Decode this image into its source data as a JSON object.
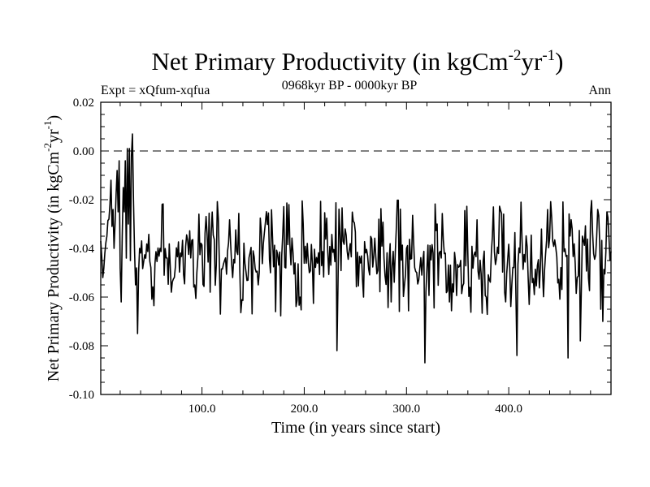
{
  "chart_data": {
    "type": "line",
    "title": "Net Primary Productivity (in kgCm",
    "title_sup1": "-2",
    "title_mid": "yr",
    "title_sup2": "-1",
    "title_end": ")",
    "subtitle_left": "Expt = xQfum-xqfua",
    "subtitle_center": "0968kyr BP - 0000kyr BP",
    "subtitle_right": "Ann",
    "xlabel": "Time (in years since start)",
    "ylabel": "Net Primary Productivity (in kgCm",
    "ylabel_sup1": "-2",
    "ylabel_mid": "yr",
    "ylabel_sup2": "-1",
    "ylabel_end": ")",
    "xlim": [
      1,
      500
    ],
    "ylim": [
      -0.1,
      0.02
    ],
    "xticks": [
      100,
      200,
      300,
      400
    ],
    "xtick_labels": [
      "100.0",
      "200.0",
      "300.0",
      "400.0"
    ],
    "yticks": [
      0.02,
      0.0,
      -0.02,
      -0.04,
      -0.06,
      -0.08,
      -0.1
    ],
    "ytick_labels": [
      "0.02",
      "0.00",
      "-0.02",
      "-0.04",
      "-0.06",
      "-0.08",
      "-0.10"
    ],
    "reference_line": 0.0,
    "anchors": [
      [
        1,
        -0.037
      ],
      [
        3,
        -0.052
      ],
      [
        5,
        -0.042
      ],
      [
        7,
        -0.035
      ],
      [
        9,
        -0.028
      ],
      [
        10,
        -0.022
      ],
      [
        11,
        -0.012
      ],
      [
        12,
        -0.031
      ],
      [
        13,
        -0.024
      ],
      [
        14,
        -0.04
      ],
      [
        15,
        -0.03
      ],
      [
        16,
        -0.018
      ],
      [
        17,
        -0.008
      ],
      [
        18,
        -0.025
      ],
      [
        19,
        -0.004
      ],
      [
        20,
        -0.048
      ],
      [
        21,
        -0.062
      ],
      [
        22,
        -0.035
      ],
      [
        23,
        -0.015
      ],
      [
        24,
        -0.025
      ],
      [
        25,
        -0.004
      ],
      [
        26,
        -0.044
      ],
      [
        27,
        0.001
      ],
      [
        28,
        -0.03
      ],
      [
        29,
        0.001
      ],
      [
        30,
        -0.045
      ],
      [
        31,
        -0.002
      ],
      [
        32,
        0.007
      ],
      [
        33,
        -0.02
      ],
      [
        34,
        -0.04
      ],
      [
        35,
        -0.055
      ],
      [
        36,
        -0.048
      ],
      [
        37,
        -0.075
      ],
      [
        38,
        -0.05
      ],
      [
        39,
        -0.04
      ],
      [
        70,
        -0.058
      ],
      [
        108,
        -0.058
      ],
      [
        155,
        -0.055
      ],
      [
        172,
        -0.066
      ],
      [
        185,
        -0.022
      ],
      [
        196,
        -0.06
      ],
      [
        205,
        -0.05
      ],
      [
        232,
        -0.082
      ],
      [
        240,
        -0.032
      ],
      [
        258,
        -0.06
      ],
      [
        285,
        -0.062
      ],
      [
        300,
        -0.04
      ],
      [
        318,
        -0.087
      ],
      [
        330,
        -0.03
      ],
      [
        342,
        -0.062
      ],
      [
        362,
        -0.056
      ],
      [
        378,
        -0.06
      ],
      [
        396,
        -0.058
      ],
      [
        408,
        -0.084
      ],
      [
        412,
        -0.021
      ],
      [
        425,
        -0.059
      ],
      [
        458,
        -0.085
      ],
      [
        462,
        -0.032
      ],
      [
        470,
        -0.078
      ],
      [
        487,
        -0.024
      ],
      [
        490,
        -0.065
      ],
      [
        492,
        -0.07
      ],
      [
        496,
        -0.025
      ],
      [
        499,
        -0.045
      ]
    ],
    "baseline_mean": -0.043,
    "noise_amplitude": 0.011
  }
}
